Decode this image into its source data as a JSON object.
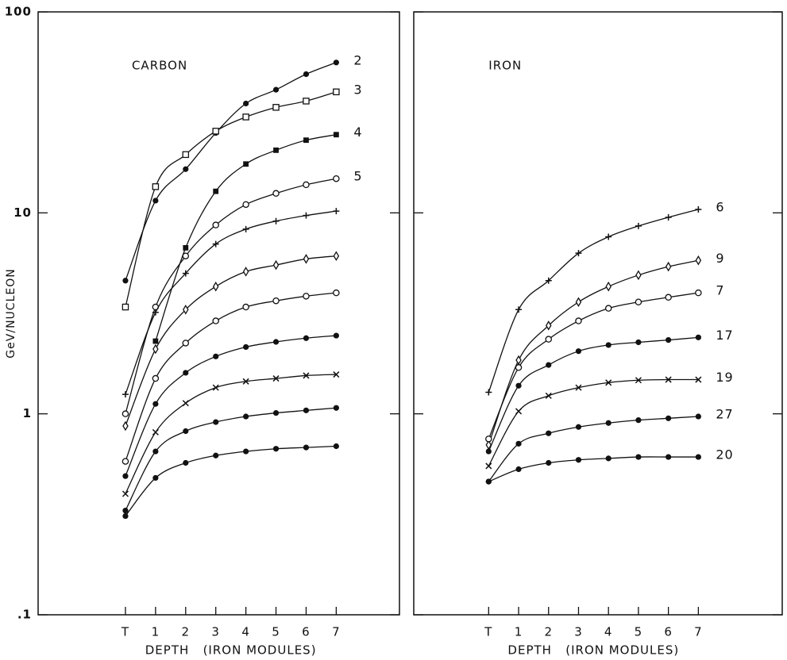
{
  "chart_data": [
    {
      "type": "line",
      "title": "CARBON",
      "x_label": "DEPTH   (IRON MODULES)",
      "y_label": "GeV/NUCLEON",
      "log_y": true,
      "tick_labels": true,
      "x": [
        0,
        1,
        2,
        3,
        4,
        5,
        6,
        7
      ],
      "xlim": [
        -2.9,
        9.1
      ],
      "xticks": [
        {
          "value": 0,
          "label": "T"
        },
        1,
        2,
        3,
        4,
        5,
        6,
        7
      ],
      "ylim": [
        0.1,
        100
      ],
      "yticks": [
        {
          "value": 0.1,
          "label": ".1"
        },
        1,
        10,
        100
      ],
      "series": [
        {
          "name": "2",
          "marker": "filled-circle",
          "values": [
            4.6,
            11.5,
            16.5,
            25,
            35,
            41,
            49,
            56
          ]
        },
        {
          "name": "3",
          "marker": "open-square",
          "values": [
            3.4,
            13.5,
            19.5,
            25.5,
            30,
            33.5,
            36,
            40
          ]
        },
        {
          "name": "4",
          "marker": "filled-square",
          "values": [
            null,
            2.3,
            6.7,
            12.8,
            17.5,
            20.5,
            23,
            24.5
          ]
        },
        {
          "name": "5",
          "marker": "open-circle",
          "values": [
            1.0,
            3.4,
            6.1,
            8.7,
            11,
            12.5,
            13.8,
            14.8
          ]
        },
        {
          "marker": "plus",
          "values": [
            1.25,
            3.2,
            5.0,
            7.0,
            8.3,
            9.1,
            9.7,
            10.2
          ]
        },
        {
          "marker": "diamond",
          "values": [
            0.87,
            2.1,
            3.3,
            4.3,
            5.1,
            5.5,
            5.9,
            6.1
          ]
        },
        {
          "marker": "open-circle",
          "values": [
            0.58,
            1.5,
            2.25,
            2.9,
            3.4,
            3.65,
            3.85,
            4.0
          ]
        },
        {
          "marker": "filled-circle",
          "values": [
            0.49,
            1.12,
            1.6,
            1.93,
            2.15,
            2.28,
            2.38,
            2.45
          ]
        },
        {
          "marker": "cross",
          "values": [
            0.4,
            0.81,
            1.13,
            1.35,
            1.45,
            1.5,
            1.55,
            1.57
          ]
        },
        {
          "marker": "filled-circle",
          "values": [
            0.33,
            0.65,
            0.82,
            0.91,
            0.97,
            1.01,
            1.04,
            1.07
          ]
        },
        {
          "marker": "filled-circle",
          "values": [
            0.31,
            0.48,
            0.57,
            0.62,
            0.65,
            0.67,
            0.68,
            0.69
          ]
        }
      ]
    },
    {
      "type": "line",
      "title": "IRON",
      "x_label": "DEPTH   (IRON MODULES)",
      "log_y": true,
      "tick_labels": false,
      "x": [
        0,
        1,
        2,
        3,
        4,
        5,
        6,
        7
      ],
      "xlim": [
        -2.5,
        9.8
      ],
      "xticks": [
        {
          "value": 0,
          "label": "T"
        },
        1,
        2,
        3,
        4,
        5,
        6,
        7
      ],
      "ylim": [
        0.1,
        100
      ],
      "yticks": [
        0.1,
        1,
        10,
        100
      ],
      "series": [
        {
          "name": "6",
          "marker": "plus",
          "values": [
            1.28,
            3.3,
            4.6,
            6.3,
            7.6,
            8.6,
            9.5,
            10.4
          ]
        },
        {
          "name": "9",
          "marker": "diamond",
          "values": [
            0.7,
            1.85,
            2.75,
            3.6,
            4.3,
            4.9,
            5.4,
            5.8
          ]
        },
        {
          "name": "7",
          "marker": "open-circle",
          "values": [
            0.75,
            1.7,
            2.35,
            2.9,
            3.35,
            3.6,
            3.8,
            4.0
          ]
        },
        {
          "name": "17",
          "marker": "filled-circle",
          "values": [
            0.65,
            1.38,
            1.75,
            2.05,
            2.2,
            2.27,
            2.33,
            2.4
          ]
        },
        {
          "name": "19",
          "marker": "cross",
          "values": [
            0.55,
            1.03,
            1.23,
            1.35,
            1.43,
            1.47,
            1.48,
            1.48
          ]
        },
        {
          "name": "27",
          "marker": "filled-circle",
          "values": [
            0.46,
            0.71,
            0.8,
            0.86,
            0.9,
            0.93,
            0.95,
            0.97
          ]
        },
        {
          "name": "20",
          "marker": "filled-circle",
          "values": [
            0.46,
            0.53,
            0.57,
            0.59,
            0.6,
            0.61,
            0.61,
            0.61
          ]
        }
      ]
    }
  ]
}
